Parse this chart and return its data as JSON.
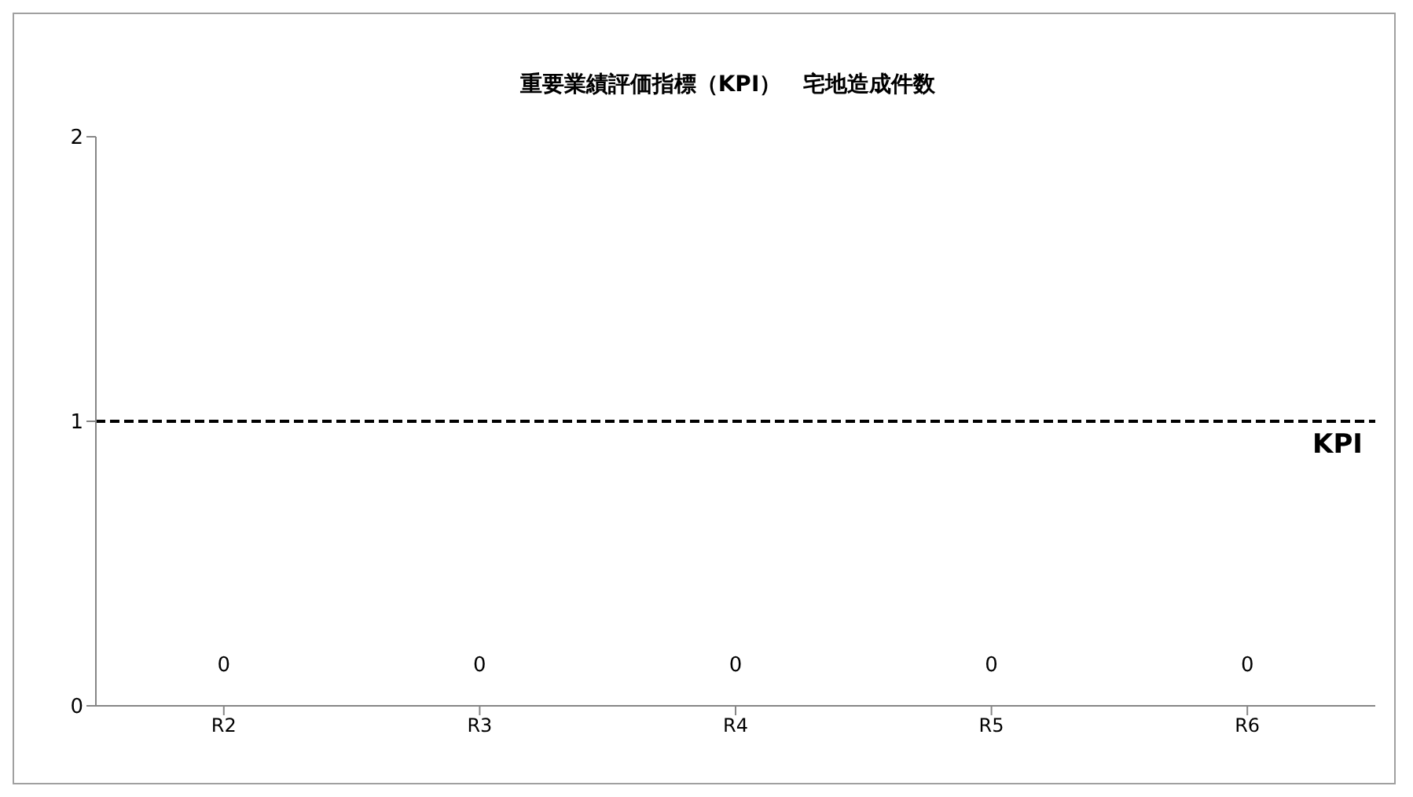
{
  "chart_data": {
    "type": "bar",
    "title": "重要業績評価指標（KPI）　宅地造成件数",
    "categories": [
      "R2",
      "R3",
      "R4",
      "R5",
      "R6"
    ],
    "values": [
      0,
      0,
      0,
      0,
      0
    ],
    "data_labels": true,
    "ylim": [
      0,
      2
    ],
    "yticks": [
      0,
      1,
      2
    ],
    "ref_lines": [
      {
        "axis": "y",
        "value": 1,
        "label": "KPI",
        "color": "#000000",
        "line_style": "dashed"
      }
    ]
  }
}
